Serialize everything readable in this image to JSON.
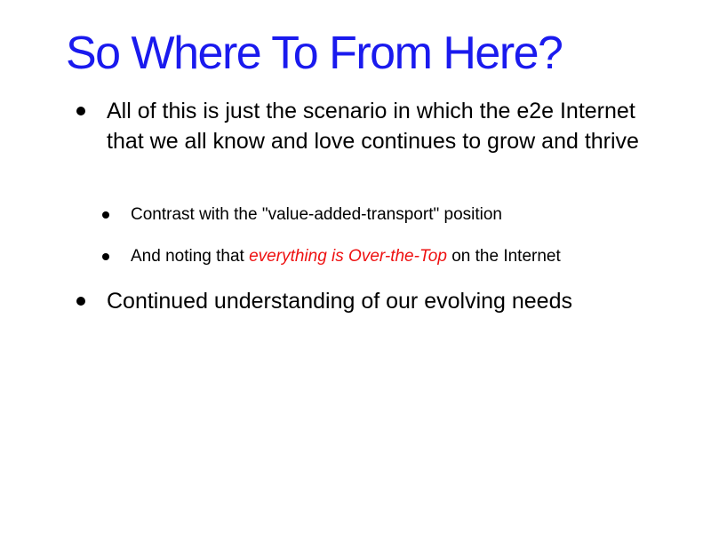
{
  "slide": {
    "title": "So Where To From Here?",
    "title_color": "#1a1aee",
    "highlight_color": "#ee1111",
    "bullets": [
      {
        "text": "All of this is just the scenario in which the e2e Internet that we all know and love continues to grow and thrive",
        "sub": [
          {
            "text": "Contrast with the \"value-added-transport\" position"
          },
          {
            "prefix": "And noting that ",
            "highlight": "everything is Over-the-Top",
            "suffix": " on the Internet"
          }
        ]
      },
      {
        "text": "Continued understanding of our evolving needs"
      }
    ]
  }
}
